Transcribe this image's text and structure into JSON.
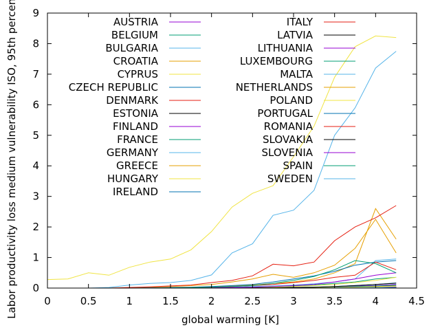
{
  "chart_data": {
    "type": "line",
    "title": "",
    "xlabel": "global warming [K]",
    "ylabel": "Labor productivity loss medium vulnerability ISO, 95th percentile",
    "xlim": [
      0,
      4.5
    ],
    "ylim": [
      0,
      9
    ],
    "xticks": [
      0,
      0.5,
      1,
      1.5,
      2,
      2.5,
      3,
      3.5,
      4,
      4.5
    ],
    "yticks": [
      0,
      1,
      2,
      3,
      4,
      5,
      6,
      7,
      8,
      9
    ],
    "grid": false,
    "legend_placement": "top, two columns",
    "x": [
      0,
      0.25,
      0.5,
      0.75,
      1,
      1.25,
      1.5,
      1.75,
      2,
      2.25,
      2.5,
      2.75,
      3,
      3.25,
      3.5,
      3.75,
      4,
      4.25
    ],
    "series": [
      {
        "name": "AUSTRIA",
        "color": "#9400d3",
        "values": [
          0,
          0,
          0,
          0,
          0,
          0,
          0,
          0,
          0,
          0,
          0,
          0.01,
          0.01,
          0.02,
          0.04,
          0.06,
          0.08,
          0.12
        ]
      },
      {
        "name": "BELGIUM",
        "color": "#009e73",
        "values": [
          0,
          0,
          0,
          0,
          0,
          0,
          0,
          0,
          0,
          0,
          0.01,
          0.01,
          0.02,
          0.03,
          0.05,
          0.08,
          0.12,
          0.16
        ]
      },
      {
        "name": "BULGARIA",
        "color": "#56b4e9",
        "values": [
          0,
          0,
          0,
          0,
          0,
          0,
          0,
          0.01,
          0.02,
          0.03,
          0.05,
          0.07,
          0.1,
          0.14,
          0.2,
          0.3,
          0.9,
          0.95
        ]
      },
      {
        "name": "CROATIA",
        "color": "#e69f00",
        "values": [
          0,
          0,
          0,
          0,
          0,
          0,
          0.01,
          0.02,
          0.04,
          0.07,
          0.1,
          0.15,
          0.2,
          0.3,
          0.5,
          0.8,
          2.6,
          1.6
        ]
      },
      {
        "name": "CYPRUS",
        "color": "#f0e442",
        "values": [
          0.28,
          0.3,
          0.5,
          0.42,
          0.68,
          0.85,
          0.95,
          1.25,
          1.85,
          2.65,
          3.1,
          3.35,
          4.3,
          5.3,
          6.9,
          7.9,
          8.25,
          8.2
        ]
      },
      {
        "name": "CZECH REPUBLIC",
        "color": "#0072b2",
        "values": [
          0,
          0,
          0,
          0,
          0,
          0,
          0,
          0,
          0,
          0,
          0,
          0.01,
          0.01,
          0.02,
          0.03,
          0.05,
          0.07,
          0.1
        ]
      },
      {
        "name": "DENMARK",
        "color": "#e51e10",
        "values": [
          0,
          0,
          0,
          0,
          0,
          0,
          0,
          0,
          0,
          0,
          0,
          0,
          0,
          0.01,
          0.01,
          0.02,
          0.03,
          0.04
        ]
      },
      {
        "name": "ESTONIA",
        "color": "#000000",
        "values": [
          0,
          0,
          0,
          0,
          0,
          0,
          0,
          0,
          0,
          0,
          0,
          0,
          0,
          0,
          0.01,
          0.01,
          0.02,
          0.03
        ]
      },
      {
        "name": "FINLAND",
        "color": "#9400d3",
        "values": [
          0,
          0,
          0,
          0,
          0,
          0,
          0,
          0,
          0,
          0,
          0,
          0,
          0,
          0,
          0,
          0.01,
          0.01,
          0.02
        ]
      },
      {
        "name": "FRANCE",
        "color": "#009e73",
        "values": [
          0,
          0,
          0,
          0,
          0,
          0,
          0,
          0,
          0.01,
          0.02,
          0.03,
          0.05,
          0.07,
          0.1,
          0.15,
          0.2,
          0.3,
          0.35
        ]
      },
      {
        "name": "GERMANY",
        "color": "#56b4e9",
        "values": [
          0,
          0,
          0,
          0,
          0,
          0,
          0,
          0,
          0,
          0,
          0,
          0.01,
          0.02,
          0.03,
          0.05,
          0.08,
          0.12,
          0.17
        ]
      },
      {
        "name": "GREECE",
        "color": "#e69f00",
        "values": [
          0,
          0,
          0,
          0,
          0.01,
          0.03,
          0.05,
          0.08,
          0.12,
          0.2,
          0.3,
          0.45,
          0.35,
          0.5,
          0.75,
          1.3,
          2.25,
          1.15
        ]
      },
      {
        "name": "HUNGARY",
        "color": "#f0e442",
        "values": [
          0,
          0,
          0,
          0,
          0,
          0,
          0,
          0,
          0,
          0.01,
          0.02,
          0.03,
          0.05,
          0.08,
          0.12,
          0.18,
          0.25,
          0.35
        ]
      },
      {
        "name": "IRELAND",
        "color": "#0072b2",
        "values": [
          0,
          0,
          0,
          0,
          0,
          0,
          0,
          0,
          0,
          0,
          0,
          0,
          0,
          0,
          0,
          0.01,
          0.01,
          0.02
        ]
      },
      {
        "name": "ITALY",
        "color": "#e51e10",
        "values": [
          0,
          0,
          0,
          0,
          0.02,
          0.04,
          0.07,
          0.1,
          0.18,
          0.25,
          0.4,
          0.78,
          0.73,
          0.85,
          1.55,
          2.0,
          2.3,
          2.7
        ]
      },
      {
        "name": "LATVIA",
        "color": "#000000",
        "values": [
          0,
          0,
          0,
          0,
          0,
          0,
          0,
          0,
          0,
          0,
          0,
          0,
          0,
          0,
          0.01,
          0.01,
          0.02,
          0.02
        ]
      },
      {
        "name": "LITHUANIA",
        "color": "#9400d3",
        "values": [
          0,
          0,
          0,
          0,
          0,
          0,
          0,
          0,
          0,
          0,
          0,
          0,
          0,
          0.01,
          0.01,
          0.02,
          0.03,
          0.04
        ]
      },
      {
        "name": "LUXEMBOURG",
        "color": "#009e73",
        "values": [
          0,
          0,
          0,
          0,
          0,
          0,
          0,
          0,
          0,
          0,
          0,
          0,
          0.01,
          0.01,
          0.02,
          0.04,
          0.06,
          0.08
        ]
      },
      {
        "name": "MALTA",
        "color": "#56b4e9",
        "values": [
          0,
          0,
          0,
          0.02,
          0.1,
          0.15,
          0.18,
          0.25,
          0.43,
          1.15,
          1.45,
          2.38,
          2.55,
          3.2,
          5.0,
          5.9,
          7.2,
          7.75
        ]
      },
      {
        "name": "NETHERLANDS",
        "color": "#e69f00",
        "values": [
          0,
          0,
          0,
          0,
          0,
          0,
          0,
          0,
          0,
          0,
          0,
          0,
          0.01,
          0.01,
          0.02,
          0.03,
          0.05,
          0.07
        ]
      },
      {
        "name": "POLAND",
        "color": "#f0e442",
        "values": [
          0,
          0,
          0,
          0,
          0,
          0,
          0,
          0,
          0,
          0,
          0,
          0,
          0.01,
          0.01,
          0.02,
          0.03,
          0.04,
          0.06
        ]
      },
      {
        "name": "PORTUGAL",
        "color": "#0072b2",
        "values": [
          0,
          0,
          0,
          0,
          0,
          0.01,
          0.02,
          0.03,
          0.05,
          0.08,
          0.12,
          0.2,
          0.3,
          0.4,
          0.55,
          0.75,
          0.85,
          0.9
        ]
      },
      {
        "name": "ROMANIA",
        "color": "#e51e10",
        "values": [
          0,
          0,
          0,
          0,
          0,
          0,
          0.01,
          0.02,
          0.03,
          0.05,
          0.08,
          0.12,
          0.18,
          0.25,
          0.35,
          0.42,
          0.85,
          0.6
        ]
      },
      {
        "name": "SLOVAKIA",
        "color": "#000000",
        "values": [
          0,
          0,
          0,
          0,
          0,
          0,
          0,
          0,
          0,
          0,
          0.01,
          0.01,
          0.02,
          0.03,
          0.05,
          0.08,
          0.12,
          0.16
        ]
      },
      {
        "name": "SLOVENIA",
        "color": "#9400d3",
        "values": [
          0,
          0,
          0,
          0,
          0,
          0,
          0,
          0,
          0.01,
          0.02,
          0.03,
          0.05,
          0.08,
          0.12,
          0.2,
          0.3,
          0.42,
          0.5
        ]
      },
      {
        "name": "SPAIN",
        "color": "#009e73",
        "values": [
          0,
          0,
          0,
          0,
          0,
          0,
          0.01,
          0.02,
          0.03,
          0.05,
          0.08,
          0.15,
          0.25,
          0.38,
          0.6,
          0.9,
          0.8,
          0.5
        ]
      },
      {
        "name": "SWEDEN",
        "color": "#56b4e9",
        "values": [
          0,
          0,
          0,
          0,
          0,
          0,
          0,
          0,
          0,
          0,
          0,
          0,
          0,
          0,
          0.01,
          0.01,
          0.02,
          0.03
        ]
      }
    ]
  }
}
